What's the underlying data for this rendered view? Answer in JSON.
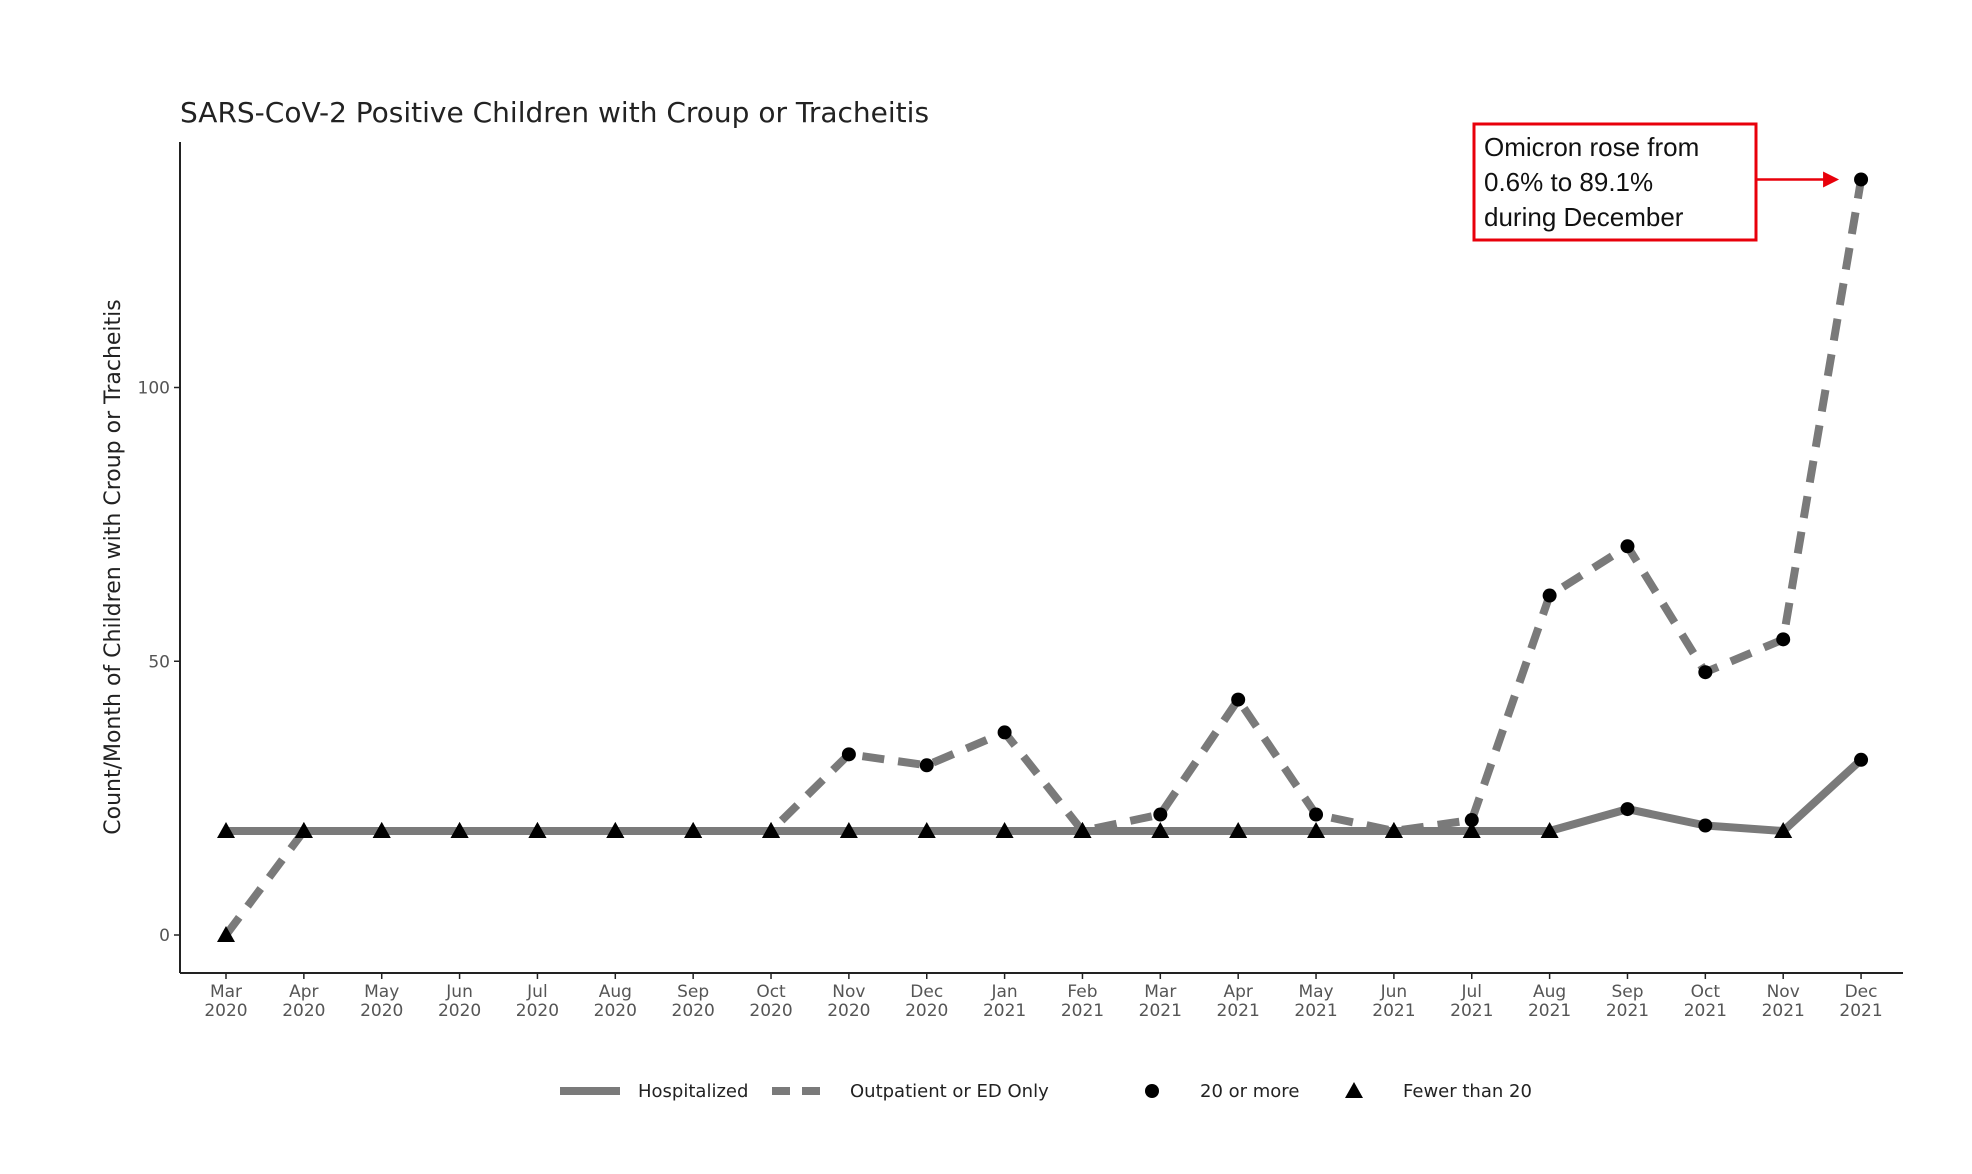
{
  "chart_data": {
    "type": "line",
    "title": "SARS-CoV-2 Positive Children with Croup or Tracheitis",
    "xlabel": "",
    "ylabel": "Count/Month of Children with Croup or Tracheitis",
    "categories": [
      [
        "Mar",
        "2020"
      ],
      [
        "Apr",
        "2020"
      ],
      [
        "May",
        "2020"
      ],
      [
        "Jun",
        "2020"
      ],
      [
        "Jul",
        "2020"
      ],
      [
        "Aug",
        "2020"
      ],
      [
        "Sep",
        "2020"
      ],
      [
        "Oct",
        "2020"
      ],
      [
        "Nov",
        "2020"
      ],
      [
        "Dec",
        "2020"
      ],
      [
        "Jan",
        "2021"
      ],
      [
        "Feb",
        "2021"
      ],
      [
        "Mar",
        "2021"
      ],
      [
        "Apr",
        "2021"
      ],
      [
        "May",
        "2021"
      ],
      [
        "Jun",
        "2021"
      ],
      [
        "Jul",
        "2021"
      ],
      [
        "Aug",
        "2021"
      ],
      [
        "Sep",
        "2021"
      ],
      [
        "Oct",
        "2021"
      ],
      [
        "Nov",
        "2021"
      ],
      [
        "Dec",
        "2021"
      ]
    ],
    "yticks": [
      0,
      50,
      100
    ],
    "ylim": [
      -7,
      144
    ],
    "grid": false,
    "legend_position": "bottom",
    "series": [
      {
        "name": "Hospitalized",
        "style": "solid",
        "values": [
          19,
          19,
          19,
          19,
          19,
          19,
          19,
          19,
          19,
          19,
          19,
          19,
          19,
          19,
          19,
          19,
          19,
          19,
          23,
          20,
          19,
          32
        ],
        "markers": [
          "triangle",
          "triangle",
          "triangle",
          "triangle",
          "triangle",
          "triangle",
          "triangle",
          "triangle",
          "triangle",
          "triangle",
          "triangle",
          "triangle",
          "triangle",
          "triangle",
          "triangle",
          "triangle",
          "triangle",
          "triangle",
          "circle",
          "circle",
          "triangle",
          "circle"
        ]
      },
      {
        "name": "Outpatient or ED Only",
        "style": "dashed",
        "values": [
          0,
          19,
          19,
          19,
          19,
          19,
          19,
          19,
          33,
          31,
          37,
          19,
          22,
          43,
          22,
          19,
          21,
          62,
          71,
          48,
          54,
          138
        ],
        "markers": [
          "triangle",
          "triangle",
          "triangle",
          "triangle",
          "triangle",
          "triangle",
          "triangle",
          "triangle",
          "circle",
          "circle",
          "circle",
          "triangle",
          "circle",
          "circle",
          "circle",
          "triangle",
          "circle",
          "circle",
          "circle",
          "circle",
          "circle",
          "circle"
        ]
      }
    ],
    "marker_legend": [
      {
        "shape": "circle",
        "label": "20 or more"
      },
      {
        "shape": "triangle",
        "label": "Fewer than 20"
      }
    ],
    "line_color": "#7a7a7a",
    "marker_color": "#000000",
    "annotation": {
      "lines": [
        "Omicron rose from",
        "0.6% to 89.1%",
        "during December"
      ],
      "border_color": "#e8000b",
      "arrow_color": "#e8000b",
      "target_category_index": 21,
      "target_value": 138
    }
  }
}
